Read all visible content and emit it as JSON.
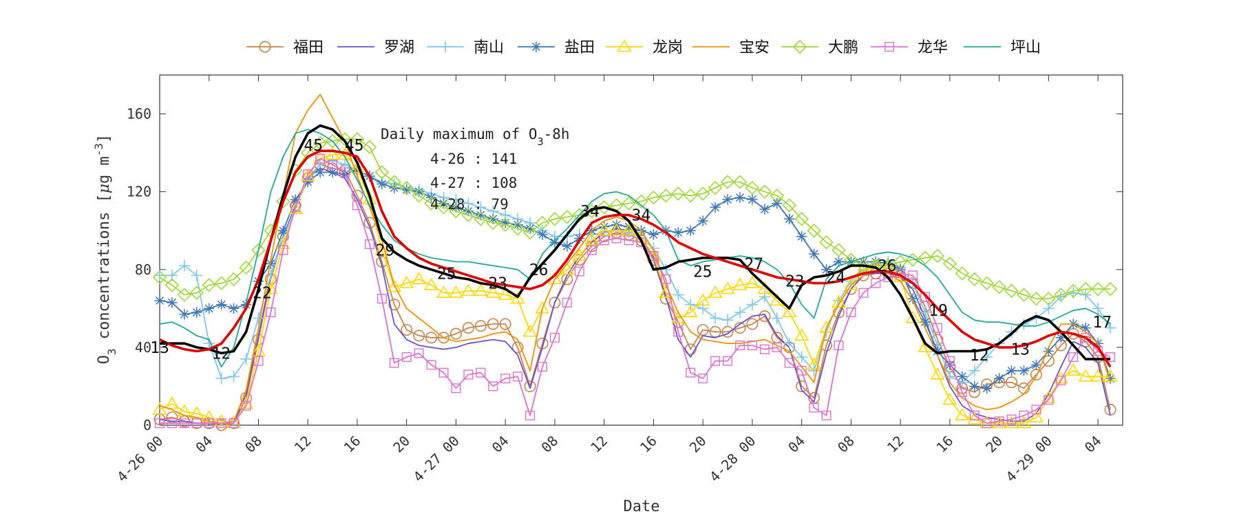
{
  "chart_data": {
    "type": "line",
    "title": "",
    "xlabel": "Date",
    "ylabel": "O3 concentrations [μg m-3]",
    "ylabel_parts": {
      "base": "O",
      "sub": "3",
      "text": " concentrations [",
      "mu": "μ",
      "unit": "g m",
      "sup": "-3",
      "close": "]"
    },
    "xlim": [
      0,
      78
    ],
    "ylim": [
      0,
      180
    ],
    "yticks": [
      0,
      40,
      80,
      120,
      160
    ],
    "ytick_labels": [
      "0",
      "40",
      "80",
      "120",
      "160"
    ],
    "xticks": [
      0,
      4,
      8,
      12,
      16,
      20,
      24,
      28,
      32,
      36,
      40,
      44,
      48,
      52,
      56,
      60,
      64,
      68,
      72,
      76
    ],
    "xtick_labels": [
      "4-26 00",
      "04",
      "08",
      "12",
      "16",
      "20",
      "4-27 00",
      "04",
      "08",
      "12",
      "16",
      "20",
      "4-28 00",
      "04",
      "08",
      "12",
      "16",
      "20",
      "4-29 00",
      "04"
    ],
    "grid": false,
    "legend_placement": "top",
    "series": [
      {
        "name": "福田",
        "color": "#c8824a",
        "marker": "circle",
        "values": [
          3,
          4,
          2,
          1,
          1,
          0,
          1,
          14,
          44,
          75,
          97,
          113,
          127,
          134,
          132,
          131,
          118,
          104,
          84,
          62,
          49,
          46,
          45,
          45,
          47,
          50,
          51,
          52,
          52,
          40,
          20,
          42,
          63,
          75,
          85,
          92,
          97,
          99,
          98,
          95,
          85,
          65,
          53,
          39,
          49,
          48,
          48,
          50,
          52,
          56,
          45,
          40,
          20,
          14,
          41,
          58,
          70,
          77,
          78,
          78,
          77,
          73,
          61,
          44,
          30,
          19,
          17,
          21,
          22,
          22,
          19,
          26,
          33,
          41,
          47,
          43,
          35,
          8
        ]
      },
      {
        "name": "罗湖",
        "color": "#6a4fd0",
        "marker": "none",
        "values": [
          3,
          2,
          2,
          1,
          1,
          0,
          1,
          16,
          46,
          77,
          97,
          113,
          127,
          132,
          130,
          127,
          116,
          102,
          82,
          52,
          44,
          41,
          40,
          39,
          40,
          42,
          43,
          44,
          43,
          36,
          19,
          40,
          63,
          77,
          87,
          94,
          99,
          101,
          100,
          97,
          86,
          66,
          44,
          35,
          46,
          45,
          47,
          52,
          56,
          57,
          46,
          40,
          18,
          12,
          37,
          56,
          70,
          77,
          78,
          78,
          76,
          70,
          55,
          36,
          20,
          10,
          6,
          4,
          3,
          2,
          2,
          6,
          16,
          30,
          43,
          40,
          32,
          5
        ]
      },
      {
        "name": "南山",
        "color": "#7fc8f0",
        "marker": "plus",
        "values": [
          77,
          77,
          82,
          77,
          42,
          24,
          25,
          34,
          55,
          77,
          96,
          112,
          126,
          134,
          136,
          134,
          131,
          128,
          125,
          124,
          122,
          121,
          119,
          117,
          116,
          114,
          112,
          110,
          108,
          106,
          104,
          100,
          97,
          97,
          98,
          98,
          99,
          100,
          99,
          96,
          91,
          80,
          67,
          62,
          60,
          55,
          54,
          58,
          62,
          66,
          55,
          42,
          35,
          28,
          48,
          64,
          74,
          80,
          83,
          84,
          81,
          73,
          58,
          41,
          25,
          22,
          28,
          35,
          42,
          48,
          52,
          55,
          60,
          66,
          68,
          67,
          60,
          50
        ]
      },
      {
        "name": "盐田",
        "color": "#3f78b8",
        "marker": "asterisk",
        "values": [
          64,
          63,
          57,
          58,
          60,
          62,
          60,
          62,
          74,
          83,
          100,
          116,
          125,
          130,
          130,
          129,
          131,
          128,
          124,
          122,
          121,
          120,
          117,
          114,
          112,
          110,
          108,
          106,
          104,
          103,
          101,
          98,
          94,
          92,
          96,
          100,
          102,
          103,
          102,
          100,
          98,
          100,
          99,
          100,
          105,
          112,
          116,
          117,
          116,
          111,
          114,
          106,
          97,
          88,
          80,
          84,
          84,
          84,
          84,
          83,
          80,
          65,
          53,
          38,
          31,
          25,
          20,
          19,
          24,
          28,
          28,
          31,
          38,
          45,
          52,
          50,
          42,
          24
        ]
      },
      {
        "name": "龙岗",
        "color": "#ffd700",
        "marker": "triangle",
        "values": [
          8,
          11,
          7,
          6,
          4,
          2,
          1,
          11,
          38,
          70,
          93,
          111,
          128,
          137,
          139,
          139,
          132,
          116,
          90,
          71,
          73,
          75,
          72,
          68,
          68,
          69,
          69,
          68,
          67,
          65,
          48,
          60,
          75,
          80,
          87,
          95,
          100,
          100,
          100,
          97,
          87,
          68,
          55,
          58,
          64,
          68,
          70,
          72,
          73,
          70,
          64,
          58,
          46,
          31,
          50,
          63,
          72,
          80,
          81,
          81,
          76,
          55,
          40,
          26,
          13,
          5,
          3,
          1,
          1,
          1,
          1,
          4,
          14,
          24,
          28,
          25,
          25,
          25
        ]
      },
      {
        "name": "宝安",
        "color": "#f0900a",
        "marker": "none",
        "values": [
          10,
          8,
          5,
          4,
          2,
          1,
          2,
          18,
          50,
          85,
          118,
          150,
          162,
          170,
          158,
          146,
          128,
          112,
          95,
          72,
          60,
          55,
          50,
          45,
          43,
          44,
          45,
          47,
          48,
          44,
          28,
          60,
          75,
          83,
          91,
          100,
          105,
          107,
          105,
          100,
          90,
          72,
          58,
          48,
          44,
          43,
          42,
          42,
          43,
          44,
          41,
          38,
          30,
          22,
          50,
          62,
          72,
          77,
          79,
          78,
          74,
          64,
          50,
          36,
          22,
          14,
          10,
          8,
          9,
          12,
          16,
          25,
          40,
          52,
          52,
          48,
          42,
          22
        ]
      },
      {
        "name": "大鹏",
        "color": "#9fd83a",
        "marker": "diamond",
        "values": [
          76,
          72,
          67,
          68,
          72,
          73,
          75,
          81,
          90,
          100,
          115,
          131,
          140,
          145,
          146,
          147,
          147,
          143,
          130,
          125,
          122,
          118,
          114,
          112,
          110,
          108,
          106,
          104,
          103,
          101,
          99,
          104,
          106,
          107,
          108,
          110,
          112,
          113,
          114,
          115,
          117,
          118,
          119,
          118,
          119,
          122,
          125,
          125,
          122,
          120,
          118,
          113,
          106,
          100,
          94,
          90,
          85,
          82,
          82,
          82,
          84,
          85,
          86,
          87,
          83,
          78,
          75,
          73,
          71,
          69,
          67,
          65,
          65,
          67,
          69,
          70,
          70,
          70
        ]
      },
      {
        "name": "龙华",
        "color": "#e070d0",
        "marker": "square",
        "values": [
          1,
          1,
          1,
          1,
          1,
          1,
          1,
          10,
          33,
          58,
          90,
          112,
          129,
          137,
          134,
          130,
          113,
          93,
          65,
          32,
          35,
          37,
          31,
          27,
          19,
          26,
          27,
          20,
          24,
          25,
          5,
          30,
          45,
          63,
          79,
          90,
          95,
          96,
          95,
          94,
          87,
          75,
          48,
          27,
          24,
          33,
          33,
          41,
          41,
          39,
          40,
          32,
          28,
          9,
          5,
          41,
          58,
          68,
          73,
          76,
          78,
          77,
          66,
          50,
          33,
          17,
          5,
          1,
          2,
          3,
          5,
          8,
          13,
          23,
          35,
          45,
          38,
          35
        ]
      },
      {
        "name": "坪山",
        "color": "#20a898",
        "marker": "none",
        "values": [
          52,
          53,
          50,
          46,
          44,
          30,
          40,
          63,
          90,
          120,
          138,
          150,
          152,
          150,
          146,
          138,
          126,
          113,
          103,
          95,
          91,
          88,
          86,
          85,
          84,
          84,
          83,
          82,
          81,
          80,
          75,
          88,
          95,
          101,
          108,
          115,
          119,
          120,
          118,
          113,
          108,
          100,
          85,
          82,
          84,
          85,
          86,
          87,
          86,
          84,
          80,
          73,
          62,
          55,
          75,
          82,
          84,
          86,
          88,
          89,
          88,
          86,
          82,
          76,
          67,
          58,
          54,
          53,
          53,
          52,
          51,
          51,
          53,
          56,
          59,
          60,
          57,
          52
        ]
      },
      {
        "name": "",
        "color": "#000000",
        "marker": "none",
        "values": [
          42,
          42,
          42,
          40,
          39,
          37,
          38,
          48,
          70,
          95,
          118,
          138,
          150,
          154,
          152,
          146,
          135,
          118,
          96,
          89,
          85,
          82,
          80,
          78,
          76,
          75,
          73,
          72,
          70,
          66,
          76,
          83,
          90,
          98,
          106,
          111,
          112,
          110,
          105,
          95,
          80,
          81,
          84,
          85,
          86,
          86,
          86,
          85,
          78,
          72,
          66,
          60,
          72,
          76,
          77,
          79,
          82,
          82,
          81,
          76,
          67,
          55,
          42,
          37,
          38,
          38,
          38,
          39,
          42,
          47,
          53,
          56,
          54,
          48,
          41,
          34,
          34,
          34
        ]
      },
      {
        "name": "",
        "color": "#e00000",
        "marker": "none",
        "values": [
          44,
          41,
          39,
          38,
          39,
          42,
          50,
          60,
          75,
          95,
          115,
          130,
          138,
          141,
          141,
          140,
          138,
          128,
          110,
          97,
          91,
          86,
          83,
          81,
          79,
          77,
          75,
          73,
          72,
          71,
          70,
          72,
          77,
          85,
          95,
          104,
          107,
          108,
          108,
          106,
          103,
          99,
          94,
          91,
          88,
          86,
          84,
          82,
          80,
          78,
          76,
          75,
          74,
          73,
          73,
          74,
          76,
          78,
          79,
          79,
          77,
          73,
          67,
          60,
          54,
          48,
          44,
          42,
          40,
          40,
          41,
          43,
          46,
          48,
          47,
          45,
          40,
          30
        ]
      }
    ],
    "hour_labels": [
      {
        "x": 0,
        "y": 40,
        "text": "13"
      },
      {
        "x": 6,
        "y": 37,
        "text": "12"
      },
      {
        "x": 10,
        "y": 68,
        "text": "22"
      },
      {
        "x": 15,
        "y": 144,
        "text": "45"
      },
      {
        "x": 19,
        "y": 144,
        "text": "45"
      },
      {
        "x": 22,
        "y": 90,
        "text": "29"
      },
      {
        "x": 28,
        "y": 78,
        "text": "25"
      },
      {
        "x": 33,
        "y": 73,
        "text": "23"
      },
      {
        "x": 37,
        "y": 80,
        "text": "26"
      },
      {
        "x": 42,
        "y": 110,
        "text": "34"
      },
      {
        "x": 47,
        "y": 108,
        "text": "34"
      },
      {
        "x": 53,
        "y": 79,
        "text": "25"
      },
      {
        "x": 58,
        "y": 83,
        "text": "27"
      },
      {
        "x": 62,
        "y": 74,
        "text": "23"
      },
      {
        "x": 66,
        "y": 76,
        "text": "24"
      },
      {
        "x": 71,
        "y": 82,
        "text": "26"
      },
      {
        "x": 76,
        "y": 59,
        "text": "19"
      },
      {
        "x": 80,
        "y": 36,
        "text": "12"
      },
      {
        "x": 84,
        "y": 39,
        "text": "13"
      },
      {
        "x": 92,
        "y": 53,
        "text": "17"
      }
    ],
    "annotation": {
      "title_base": "Daily maximum of O",
      "title_sub": "3",
      "title_tail": "-8h",
      "lines": [
        "4-26 : 141",
        "4-27 : 108",
        "4-28 : 79"
      ]
    }
  }
}
